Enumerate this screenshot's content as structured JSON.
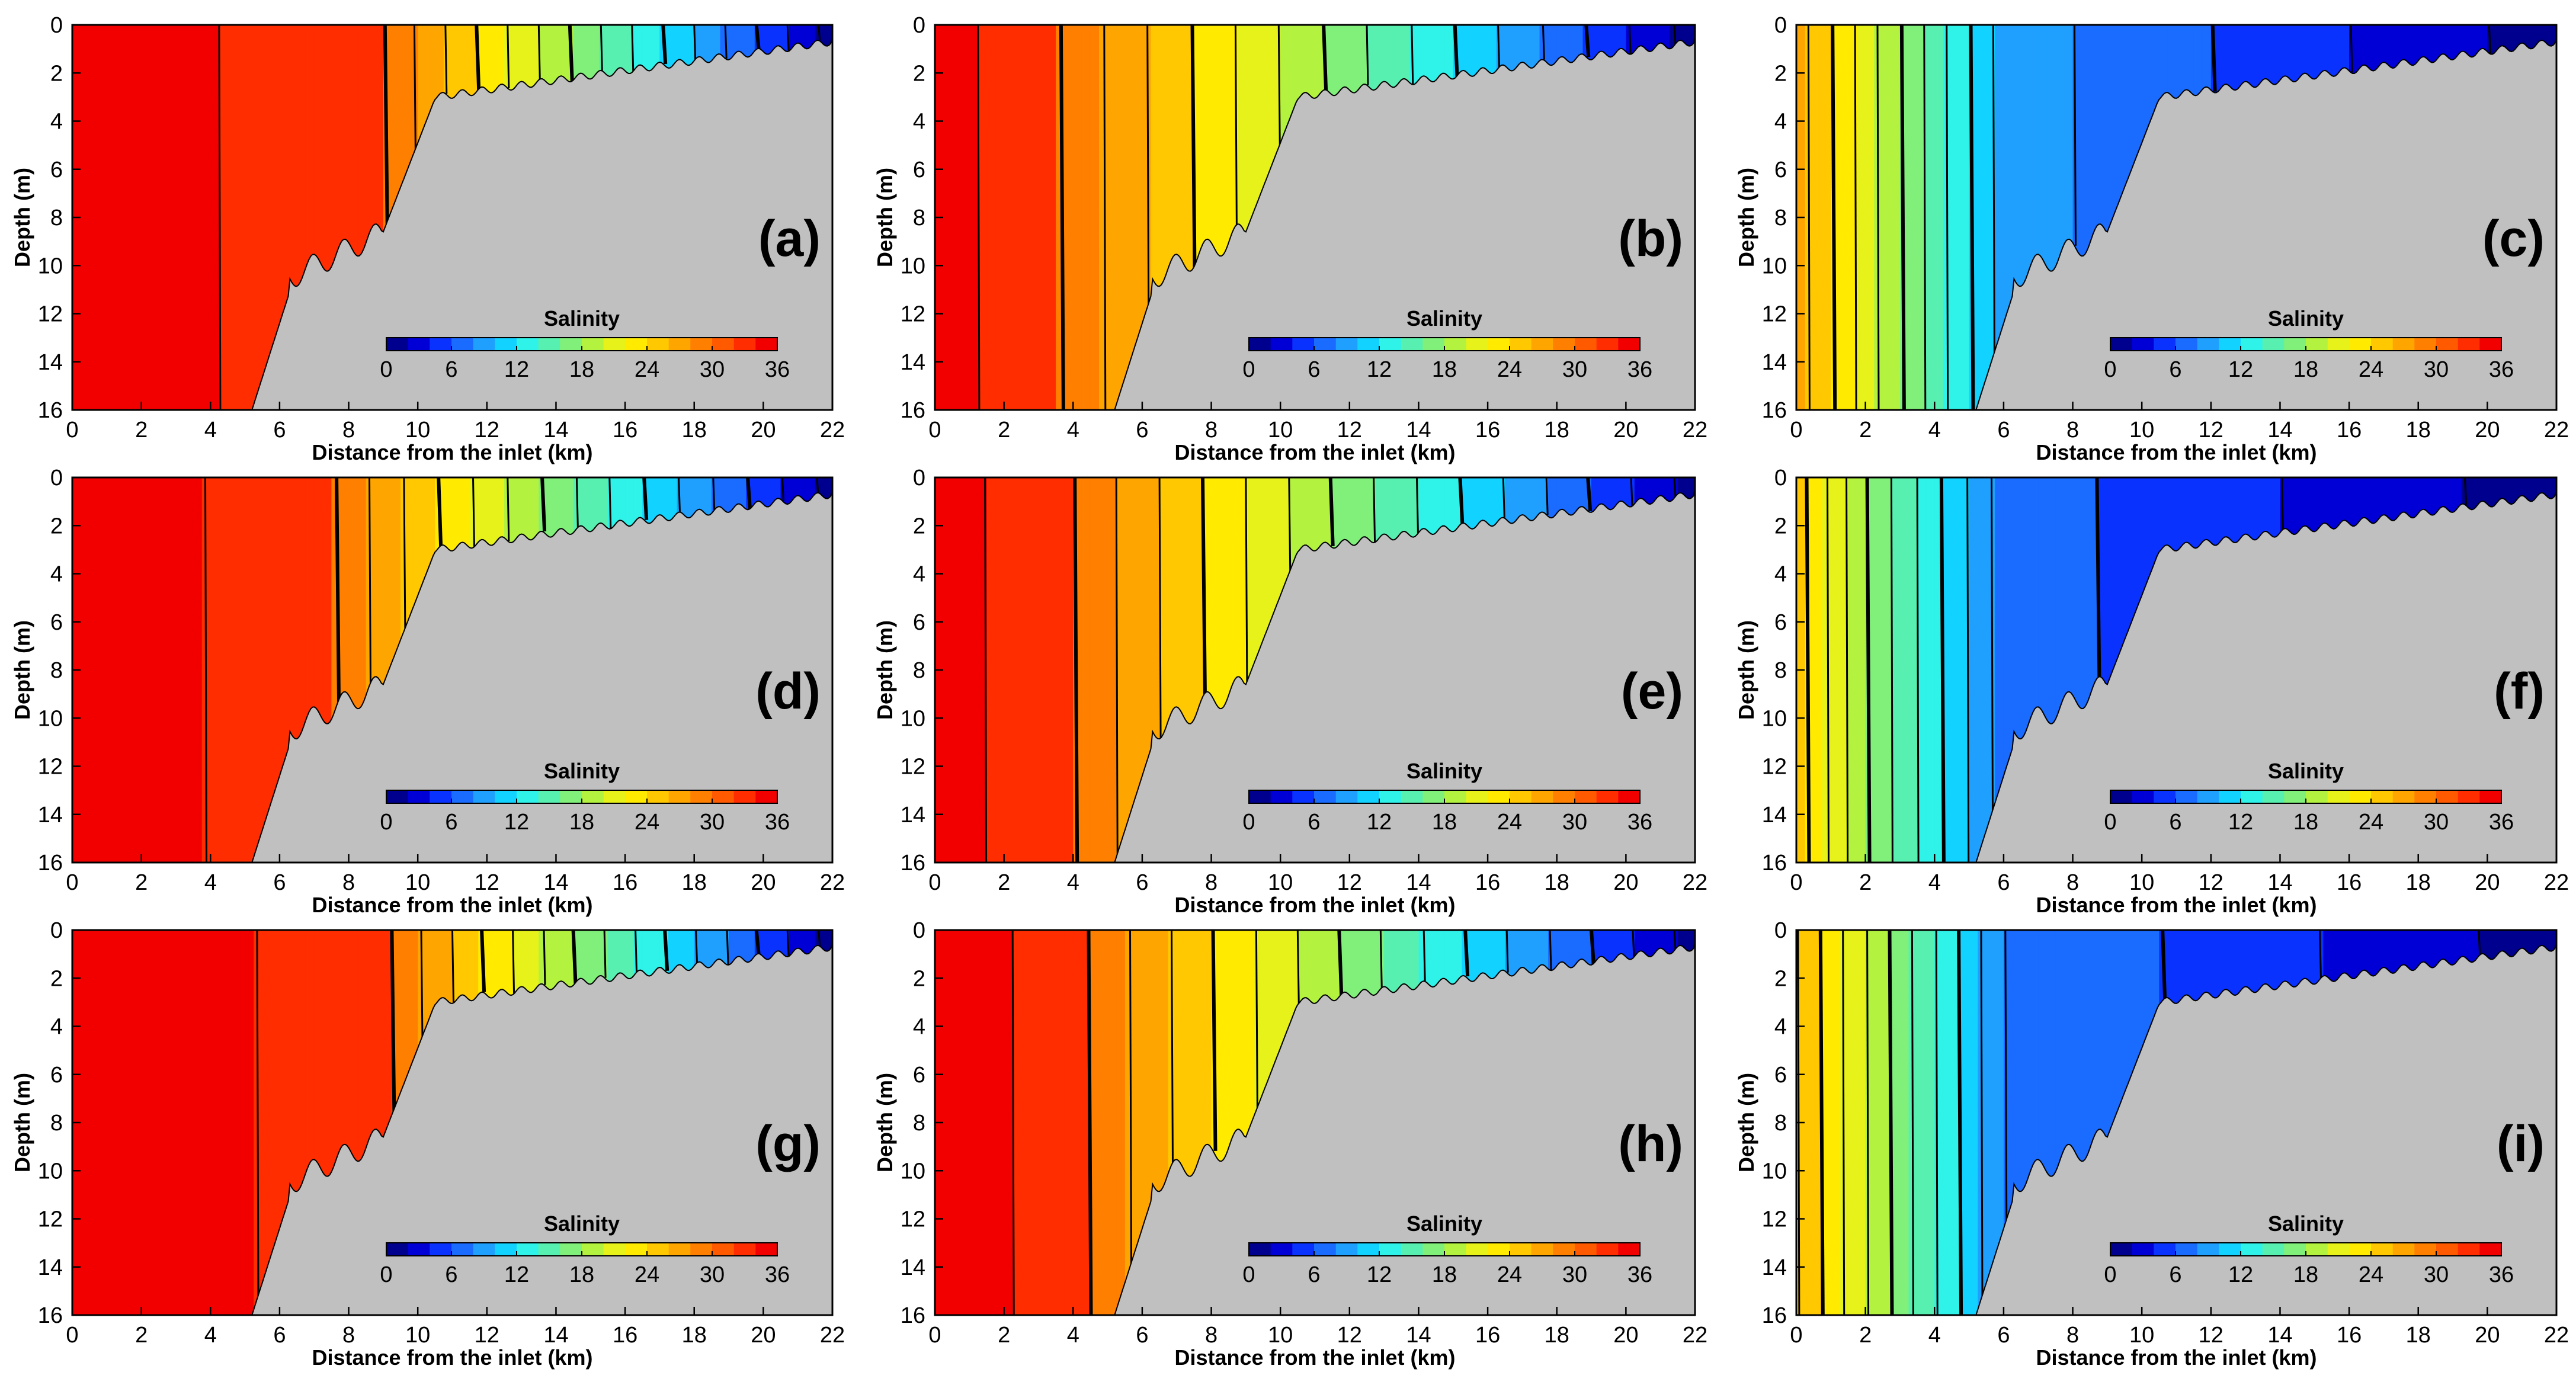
{
  "figure": {
    "description_free": true,
    "panel_labels": [
      "(a)",
      "(b)",
      "(c)",
      "(d)",
      "(e)",
      "(f)",
      "(g)",
      "(h)",
      "(i)"
    ]
  },
  "colors": {
    "land": "#c0c0c0",
    "contour": "#000000",
    "colormap": [
      "#00008f",
      "#0000d6",
      "#0a32ff",
      "#1a6bff",
      "#1fa0ff",
      "#12d2ff",
      "#2ff2e8",
      "#57f0b0",
      "#80f07a",
      "#b3f23e",
      "#e6f21a",
      "#ffea00",
      "#ffc800",
      "#ffa500",
      "#ff7f00",
      "#ff5a00",
      "#ff2d00",
      "#f20000"
    ]
  },
  "chart_data": [
    {
      "type": "heatmap",
      "panel": "(a)",
      "xlabel": "Distance from the inlet (km)",
      "ylabel": "Depth (m)",
      "xlim": [
        0,
        22
      ],
      "ylim": [
        0,
        16
      ],
      "xticks": [
        "0",
        "2",
        "4",
        "6",
        "8",
        "10",
        "12",
        "14",
        "16",
        "18",
        "20",
        "22"
      ],
      "yticks": [
        "0",
        "2",
        "4",
        "6",
        "8",
        "10",
        "12",
        "14",
        "16"
      ],
      "colorbar": {
        "label": "Salinity",
        "range": [
          0,
          36
        ],
        "ticks": [
          "0",
          "6",
          "12",
          "18",
          "24",
          "30",
          "36"
        ]
      },
      "profile": {
        "seaward_salinity": 35,
        "salinity_35_until_km": 4.2,
        "salinity_33_until_km": 9.0,
        "mouth_km": 22,
        "min_salinity": 1
      }
    },
    {
      "type": "heatmap",
      "panel": "(b)",
      "xlabel": "Distance from the inlet (km)",
      "ylabel": "Depth (m)",
      "xlim": [
        0,
        22
      ],
      "ylim": [
        0,
        16
      ],
      "xticks": [
        "0",
        "2",
        "4",
        "6",
        "8",
        "10",
        "12",
        "14",
        "16",
        "18",
        "20",
        "22"
      ],
      "yticks": [
        "0",
        "2",
        "4",
        "6",
        "8",
        "10",
        "12",
        "14",
        "16"
      ],
      "colorbar": {
        "label": "Salinity",
        "range": [
          0,
          36
        ],
        "ticks": [
          "0",
          "6",
          "12",
          "18",
          "24",
          "30",
          "36"
        ]
      },
      "profile": {
        "seaward_salinity": 35,
        "salinity_35_until_km": 1.2,
        "salinity_33_until_km": 3.6,
        "mouth_km": 22,
        "min_salinity": 1
      }
    },
    {
      "type": "heatmap",
      "panel": "(c)",
      "xlabel": "Distance from the inlet (km)",
      "ylabel": "Depth (m)",
      "xlim": [
        0,
        22
      ],
      "ylim": [
        0,
        16
      ],
      "xticks": [
        "0",
        "2",
        "4",
        "6",
        "8",
        "10",
        "12",
        "14",
        "16",
        "18",
        "20",
        "22"
      ],
      "yticks": [
        "0",
        "2",
        "4",
        "6",
        "8",
        "10",
        "12",
        "14",
        "16"
      ],
      "colorbar": {
        "label": "Salinity",
        "range": [
          0,
          36
        ],
        "ticks": [
          "0",
          "6",
          "12",
          "18",
          "24",
          "30",
          "36"
        ]
      },
      "profile": {
        "seaward_salinity": 27,
        "salinity_at_2km": 21,
        "salinity_at_6km": 9,
        "mouth_km": 22,
        "min_salinity": 1
      }
    },
    {
      "type": "heatmap",
      "panel": "(d)",
      "xlabel": "Distance from the inlet (km)",
      "ylabel": "Depth (m)",
      "xlim": [
        0,
        22
      ],
      "ylim": [
        0,
        16
      ],
      "xticks": [
        "0",
        "2",
        "4",
        "6",
        "8",
        "10",
        "12",
        "14",
        "16",
        "18",
        "20",
        "22"
      ],
      "yticks": [
        "0",
        "2",
        "4",
        "6",
        "8",
        "10",
        "12",
        "14",
        "16"
      ],
      "colorbar": {
        "label": "Salinity",
        "range": [
          0,
          36
        ],
        "ticks": [
          "0",
          "6",
          "12",
          "18",
          "24",
          "30",
          "36"
        ]
      },
      "profile": {
        "seaward_salinity": 35,
        "salinity_35_until_km": 3.8,
        "salinity_33_until_km": 7.6,
        "mouth_km": 22,
        "min_salinity": 1
      }
    },
    {
      "type": "heatmap",
      "panel": "(e)",
      "xlabel": "Distance from the inlet (km)",
      "ylabel": "Depth (m)",
      "xlim": [
        0,
        22
      ],
      "ylim": [
        0,
        16
      ],
      "xticks": [
        "0",
        "2",
        "4",
        "6",
        "8",
        "10",
        "12",
        "14",
        "16",
        "18",
        "20",
        "22"
      ],
      "yticks": [
        "0",
        "2",
        "4",
        "6",
        "8",
        "10",
        "12",
        "14",
        "16"
      ],
      "colorbar": {
        "label": "Salinity",
        "range": [
          0,
          36
        ],
        "ticks": [
          "0",
          "6",
          "12",
          "18",
          "24",
          "30",
          "36"
        ]
      },
      "profile": {
        "seaward_salinity": 35,
        "salinity_35_until_km": 1.4,
        "salinity_33_until_km": 4.0,
        "mouth_km": 22,
        "min_salinity": 1
      }
    },
    {
      "type": "heatmap",
      "panel": "(f)",
      "xlabel": "Distance from the inlet (km)",
      "ylabel": "Depth (m)",
      "xlim": [
        0,
        22
      ],
      "ylim": [
        0,
        16
      ],
      "xticks": [
        "0",
        "2",
        "4",
        "6",
        "8",
        "10",
        "12",
        "14",
        "16",
        "18",
        "20",
        "22"
      ],
      "yticks": [
        "0",
        "2",
        "4",
        "6",
        "8",
        "10",
        "12",
        "14",
        "16"
      ],
      "colorbar": {
        "label": "Salinity",
        "range": [
          0,
          36
        ],
        "ticks": [
          "0",
          "6",
          "12",
          "18",
          "24",
          "30",
          "36"
        ]
      },
      "profile": {
        "seaward_salinity": 25,
        "salinity_at_2km": 18,
        "salinity_at_6km": 7,
        "mouth_km": 22,
        "min_salinity": 1
      }
    },
    {
      "type": "heatmap",
      "panel": "(g)",
      "xlabel": "Distance from the inlet (km)",
      "ylabel": "Depth (m)",
      "xlim": [
        0,
        22
      ],
      "ylim": [
        0,
        16
      ],
      "xticks": [
        "0",
        "2",
        "4",
        "6",
        "8",
        "10",
        "12",
        "14",
        "16",
        "18",
        "20",
        "22"
      ],
      "yticks": [
        "0",
        "2",
        "4",
        "6",
        "8",
        "10",
        "12",
        "14",
        "16"
      ],
      "colorbar": {
        "label": "Salinity",
        "range": [
          0,
          36
        ],
        "ticks": [
          "0",
          "6",
          "12",
          "18",
          "24",
          "30",
          "36"
        ]
      },
      "profile": {
        "seaward_salinity": 35,
        "salinity_35_until_km": 5.3,
        "salinity_33_until_km": 9.2,
        "mouth_km": 22,
        "min_salinity": 1
      }
    },
    {
      "type": "heatmap",
      "panel": "(h)",
      "xlabel": "Distance from the inlet (km)",
      "ylabel": "Depth (m)",
      "xlim": [
        0,
        22
      ],
      "ylim": [
        0,
        16
      ],
      "xticks": [
        "0",
        "2",
        "4",
        "6",
        "8",
        "10",
        "12",
        "14",
        "16",
        "18",
        "20",
        "22"
      ],
      "yticks": [
        "0",
        "2",
        "4",
        "6",
        "8",
        "10",
        "12",
        "14",
        "16"
      ],
      "colorbar": {
        "label": "Salinity",
        "range": [
          0,
          36
        ],
        "ticks": [
          "0",
          "6",
          "12",
          "18",
          "24",
          "30",
          "36"
        ]
      },
      "profile": {
        "seaward_salinity": 35,
        "salinity_35_until_km": 2.2,
        "salinity_33_until_km": 4.4,
        "mouth_km": 22,
        "min_salinity": 1
      }
    },
    {
      "type": "heatmap",
      "panel": "(i)",
      "xlabel": "Distance from the inlet (km)",
      "ylabel": "Depth (m)",
      "xlim": [
        0,
        22
      ],
      "ylim": [
        0,
        16
      ],
      "xticks": [
        "0",
        "2",
        "4",
        "6",
        "8",
        "10",
        "12",
        "14",
        "16",
        "18",
        "20",
        "22"
      ],
      "yticks": [
        "0",
        "2",
        "4",
        "6",
        "8",
        "10",
        "12",
        "14",
        "16"
      ],
      "colorbar": {
        "label": "Salinity",
        "range": [
          0,
          36
        ],
        "ticks": [
          "0",
          "6",
          "12",
          "18",
          "24",
          "30",
          "36"
        ]
      },
      "profile": {
        "seaward_salinity": 26,
        "salinity_at_2km": 20,
        "salinity_at_6km": 8,
        "mouth_km": 22,
        "min_salinity": 1
      }
    }
  ]
}
